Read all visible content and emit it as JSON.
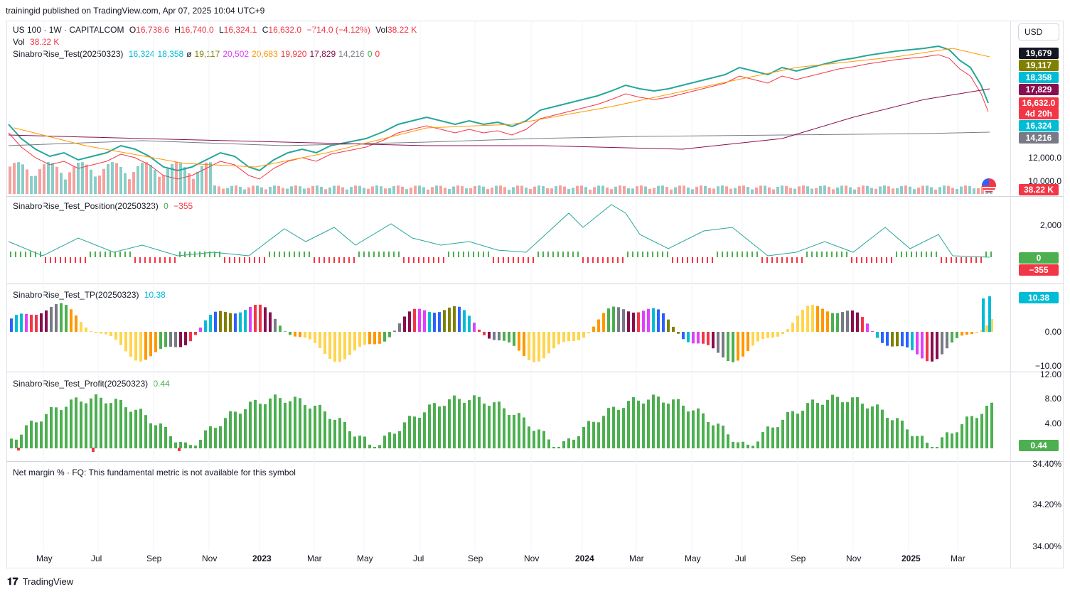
{
  "publish_line": "trainingid published on TradingView.com, Apr 07, 2025 10:04 UTC+9",
  "symbol_line": {
    "symbol": "US 100 · 1W · CAPITALCOM",
    "o_label": "O",
    "o": "16,738.6",
    "h_label": "H",
    "h": "16,740.0",
    "l_label": "L",
    "l": "16,324.1",
    "c_label": "C",
    "c": "16,632.0",
    "change": "−714.0 (−4.12%)",
    "vol_label": "Vol",
    "vol": "38.22 K"
  },
  "vol_line": {
    "label": "Vol",
    "value": "38.22 K"
  },
  "indicator_main": {
    "name": "SinabroRise_Test(20250323)",
    "values": [
      "16,324",
      "18,358",
      "ø",
      "19,117",
      "20,502",
      "20,683",
      "19,920",
      "17,829",
      "14,216",
      "0",
      "0"
    ],
    "colors": [
      "#00bcd4",
      "#00bcd4",
      "#131722",
      "#808000",
      "#e040fb",
      "#ff9800",
      "#f23645",
      "#880e4f",
      "#787b86",
      "#4caf50",
      "#f23645"
    ]
  },
  "indicator_position": {
    "name": "SinabroRise_Test_Position(20250323)",
    "v1": "0",
    "v2": "−355"
  },
  "indicator_tp": {
    "name": "SinabroRise_Test_TP(20250323)",
    "v1": "10.38"
  },
  "indicator_profit": {
    "name": "SinabroRise_Test_Profit(20250323)",
    "v1": "0.44"
  },
  "fundamental": {
    "text": "Net margin % · FQ: This fundamental metric is not available for this symbol"
  },
  "currency_button": "USD",
  "price_axis": [
    "12,000.0",
    "10,000.0"
  ],
  "price_tags": [
    {
      "text": "19,679",
      "color": "#131722"
    },
    {
      "text": "19,117",
      "color": "#808000"
    },
    {
      "text": "18,358",
      "color": "#00bcd4"
    },
    {
      "text": "17,829",
      "color": "#880e4f"
    },
    {
      "text": "16,632.0",
      "color": "#f23645"
    },
    {
      "text": "4d 20h",
      "color": "#f23645"
    },
    {
      "text": "16,324",
      "color": "#00bcd4"
    },
    {
      "text": "14,216",
      "color": "#787b86"
    },
    {
      "text": "38.22 K",
      "color": "#f23645"
    }
  ],
  "position_axis": [
    "2,000"
  ],
  "position_tags": [
    {
      "text": "0",
      "color": "#4caf50"
    },
    {
      "text": "−355",
      "color": "#f23645"
    }
  ],
  "tp_axis": [
    "0.00",
    "−10.00"
  ],
  "tp_tag": {
    "text": "10.38",
    "color": "#00bcd4"
  },
  "profit_axis": [
    "12.00",
    "8.00",
    "4.00"
  ],
  "profit_tag": {
    "text": "0.44",
    "color": "#4caf50"
  },
  "fund_axis": [
    "34.40%",
    "34.20%",
    "34.00%"
  ],
  "x_axis": [
    {
      "label": "May",
      "bold": false
    },
    {
      "label": "Jul",
      "bold": false
    },
    {
      "label": "Sep",
      "bold": false
    },
    {
      "label": "Nov",
      "bold": false
    },
    {
      "label": "2023",
      "bold": true
    },
    {
      "label": "Mar",
      "bold": false
    },
    {
      "label": "May",
      "bold": false
    },
    {
      "label": "Jul",
      "bold": false
    },
    {
      "label": "Sep",
      "bold": false
    },
    {
      "label": "Nov",
      "bold": false
    },
    {
      "label": "2024",
      "bold": true
    },
    {
      "label": "Mar",
      "bold": false
    },
    {
      "label": "May",
      "bold": false
    },
    {
      "label": "Jul",
      "bold": false
    },
    {
      "label": "Sep",
      "bold": false
    },
    {
      "label": "Nov",
      "bold": false
    },
    {
      "label": "2025",
      "bold": true
    },
    {
      "label": "Mar",
      "bold": false
    }
  ],
  "footer": {
    "brand": "TradingView"
  },
  "colors": {
    "up": "#26a69a",
    "down": "#ef5350",
    "accent": "#2962ff"
  }
}
